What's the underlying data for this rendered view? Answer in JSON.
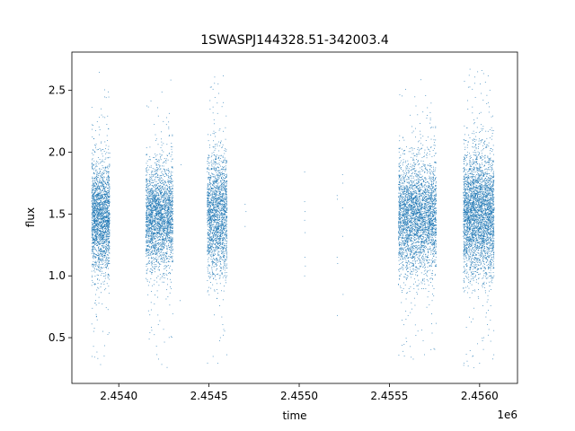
{
  "chart_data": {
    "type": "scatter",
    "title": "1SWASPJ144328.51-342003.4",
    "xlabel": "time",
    "ylabel": "flux",
    "x_offset_label": "1e6",
    "xlim": [
      2453740,
      2456210
    ],
    "ylim": [
      0.13,
      2.81
    ],
    "grid": false,
    "marker_color": "#1f77b4",
    "x_ticks": [
      {
        "value": 2454000,
        "label": "2.4540"
      },
      {
        "value": 2454500,
        "label": "2.4545"
      },
      {
        "value": 2455000,
        "label": "2.4550"
      },
      {
        "value": 2455500,
        "label": "2.4555"
      },
      {
        "value": 2456000,
        "label": "2.4560"
      }
    ],
    "y_ticks": [
      {
        "value": 0.5,
        "label": "0.5"
      },
      {
        "value": 1.0,
        "label": "1.0"
      },
      {
        "value": 1.5,
        "label": "1.5"
      },
      {
        "value": 2.0,
        "label": "2.0"
      },
      {
        "value": 2.5,
        "label": "2.5"
      }
    ],
    "series": [
      {
        "clusters": [
          {
            "x_start": 2453850,
            "x_end": 2453950,
            "y_center": 1.47,
            "y_spread": 0.22,
            "y_min": 0.25,
            "y_max": 2.65,
            "count": 2200
          },
          {
            "x_start": 2454150,
            "x_end": 2454300,
            "y_center": 1.48,
            "y_spread": 0.2,
            "y_min": 0.25,
            "y_max": 2.62,
            "count": 2600
          },
          {
            "x_start": 2454490,
            "x_end": 2454600,
            "y_center": 1.5,
            "y_spread": 0.24,
            "y_min": 0.25,
            "y_max": 2.62,
            "count": 2000
          },
          {
            "x_start": 2455550,
            "x_end": 2455760,
            "y_center": 1.48,
            "y_spread": 0.22,
            "y_min": 0.28,
            "y_max": 2.65,
            "count": 3400
          },
          {
            "x_start": 2455910,
            "x_end": 2456080,
            "y_center": 1.5,
            "y_spread": 0.24,
            "y_min": 0.25,
            "y_max": 2.68,
            "count": 3600
          }
        ],
        "sparse_points": [
          {
            "x": 2454700,
            "y": 1.58
          },
          {
            "x": 2454700,
            "y": 1.4
          },
          {
            "x": 2454705,
            "y": 1.52
          },
          {
            "x": 2455030,
            "y": 1.84
          },
          {
            "x": 2455030,
            "y": 1.6
          },
          {
            "x": 2455032,
            "y": 1.52
          },
          {
            "x": 2455030,
            "y": 1.45
          },
          {
            "x": 2455033,
            "y": 1.35
          },
          {
            "x": 2455031,
            "y": 1.15
          },
          {
            "x": 2455034,
            "y": 1.08
          },
          {
            "x": 2455030,
            "y": 1.0
          },
          {
            "x": 2455210,
            "y": 1.65
          },
          {
            "x": 2455212,
            "y": 1.62
          },
          {
            "x": 2455210,
            "y": 1.15
          },
          {
            "x": 2455213,
            "y": 1.1
          },
          {
            "x": 2455211,
            "y": 0.68
          },
          {
            "x": 2455240,
            "y": 1.82
          },
          {
            "x": 2455242,
            "y": 1.75
          },
          {
            "x": 2455240,
            "y": 1.55
          },
          {
            "x": 2455241,
            "y": 1.32
          },
          {
            "x": 2455243,
            "y": 0.85
          },
          {
            "x": 2454340,
            "y": 0.8
          },
          {
            "x": 2454345,
            "y": 1.9
          }
        ]
      }
    ]
  }
}
